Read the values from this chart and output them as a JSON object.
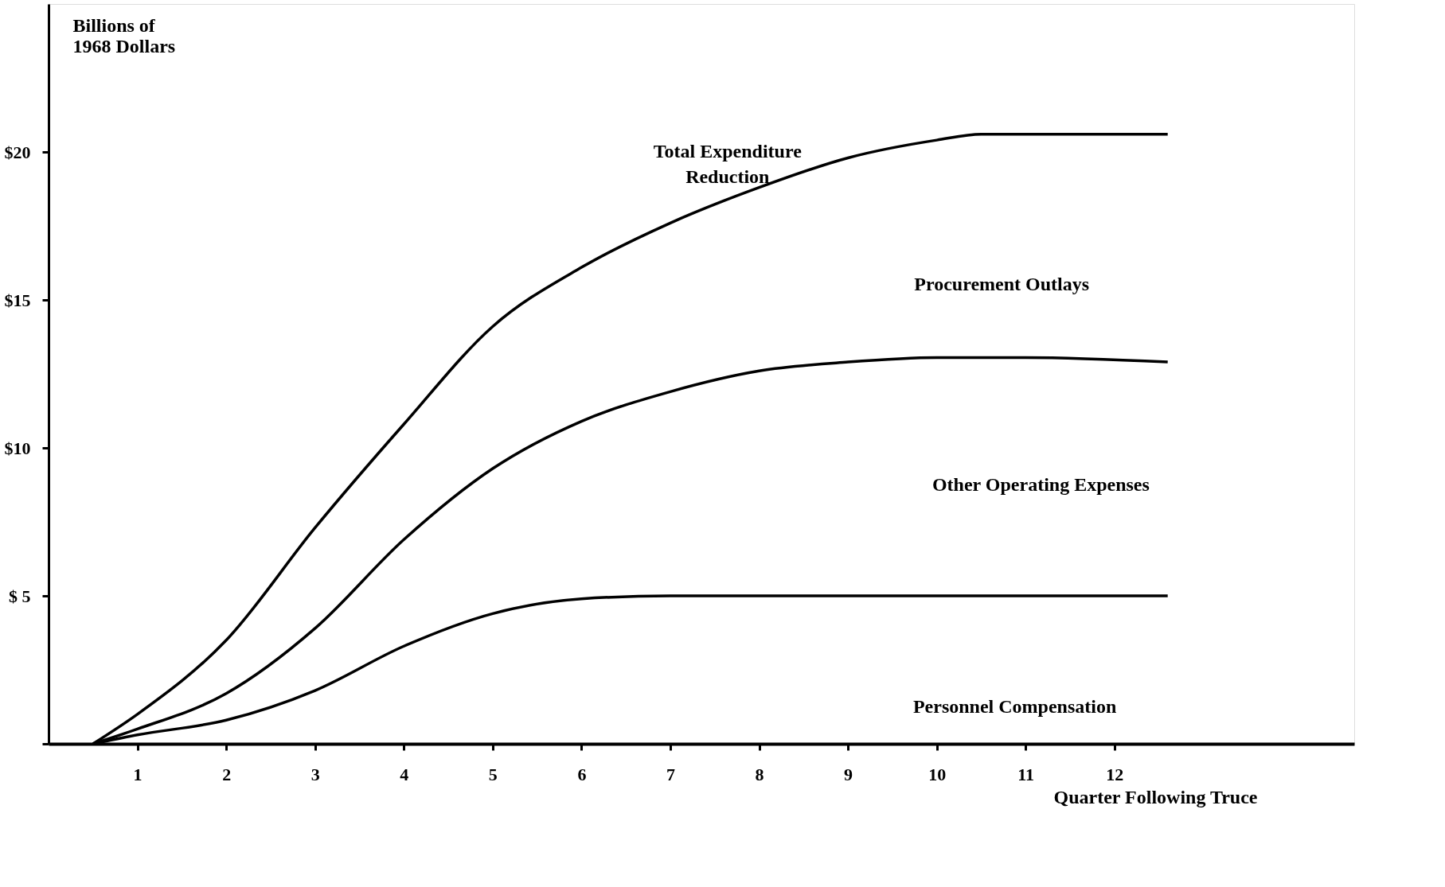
{
  "chart_data": {
    "type": "line",
    "xlabel": "Quarter Following Truce",
    "ylabel": "Billions of 1968 Dollars",
    "xlim": [
      0,
      14.7
    ],
    "xticks": [
      1,
      2,
      3,
      4,
      5,
      6,
      7,
      8,
      9,
      10,
      11,
      12
    ],
    "ylim": [
      0,
      25
    ],
    "yticks": [
      {
        "value": 0,
        "label": null
      },
      {
        "value": 5,
        "label": "$ 5"
      },
      {
        "value": 10,
        "label": "$10"
      },
      {
        "value": 15,
        "label": "$15"
      },
      {
        "value": 20,
        "label": "$20"
      }
    ],
    "grid": false,
    "marker": "none",
    "line_style": "solid",
    "series": [
      {
        "color": "#000000",
        "x": [
          0.5,
          1,
          2,
          3,
          4,
          5,
          6,
          7,
          8,
          9,
          10,
          10.5,
          12.6
        ],
        "values": [
          0,
          1.0,
          3.5,
          7.3,
          10.8,
          14.1,
          16.1,
          17.6,
          18.8,
          19.8,
          20.4,
          20.6,
          20.6
        ]
      },
      {
        "color": "#000000",
        "x": [
          0.5,
          1,
          2,
          3,
          4,
          5,
          6,
          7,
          8,
          9,
          10,
          11,
          12.6
        ],
        "values": [
          0,
          0.5,
          1.7,
          3.9,
          6.9,
          9.3,
          10.9,
          11.9,
          12.6,
          12.9,
          13.05,
          13.05,
          12.9
        ]
      },
      {
        "color": "#000000",
        "x": [
          0.5,
          1,
          2,
          3,
          4,
          5,
          6,
          7,
          8,
          12.6
        ],
        "values": [
          0,
          0.3,
          0.8,
          1.8,
          3.3,
          4.4,
          4.9,
          5.0,
          5.0,
          5.0
        ]
      }
    ],
    "annotations": [
      "Total Expenditure\nReduction",
      "Procurement Outlays",
      "Other Operating Expenses",
      "Personnel Compensation"
    ]
  }
}
